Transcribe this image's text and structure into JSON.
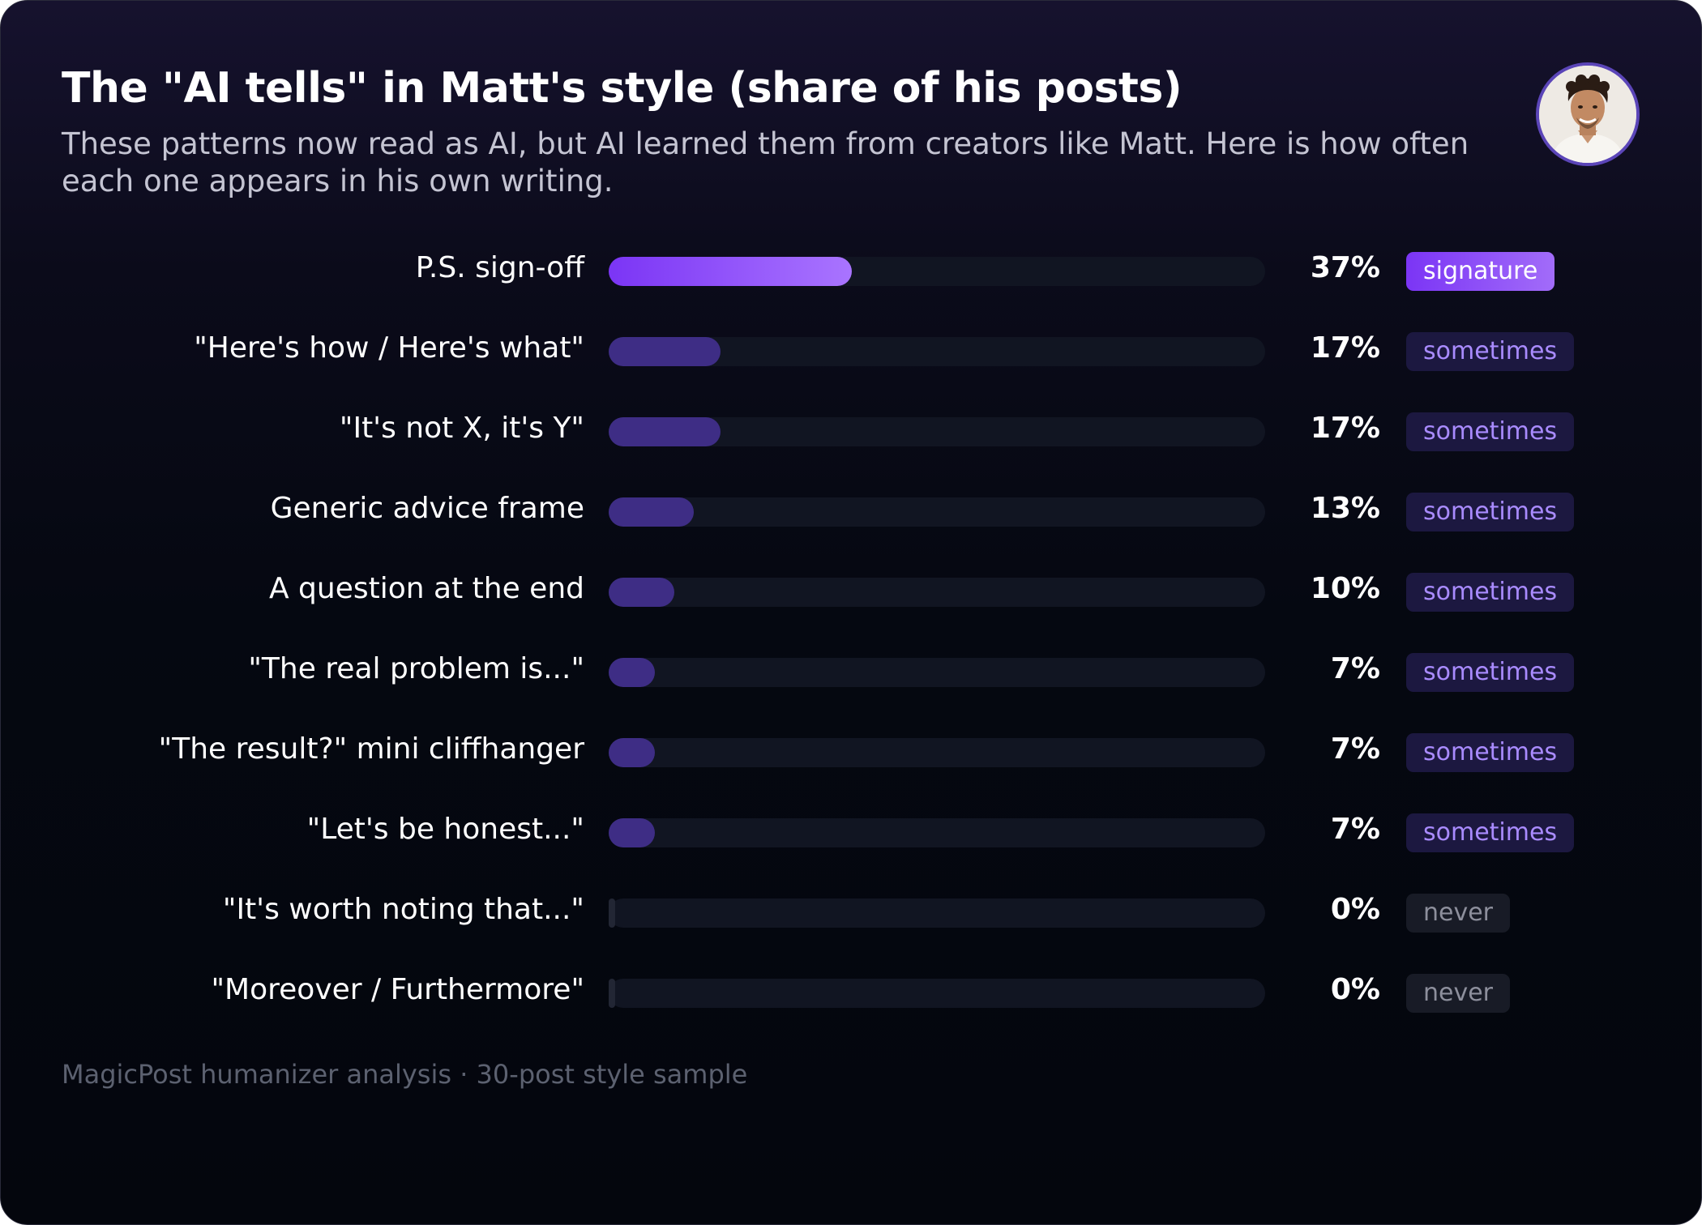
{
  "title": "The \"AI tells\" in Matt's style (share of his posts)",
  "subtitle": "These patterns now read as AI, but AI learned them from creators like Matt. Here is how often each one appears in his own writing.",
  "footer": "MagicPost humanizer analysis · 30-post style sample",
  "icons": {
    "avatar": "author-portrait"
  },
  "colors": {
    "background": "#05080f",
    "top_bar": "#8b46ff",
    "bar": "#3e2d85",
    "track": "#111522",
    "badge_signature": "#8b46ff",
    "badge_sometimes_text": "#a98bff",
    "badge_never_text": "#8d8f9c"
  },
  "chart_data": {
    "type": "bar",
    "orientation": "horizontal",
    "title": "The \"AI tells\" in Matt's style (share of his posts)",
    "xlim": [
      0,
      100
    ],
    "unit": "%",
    "grid": false,
    "legend": "none",
    "categories": [
      "P.S. sign-off",
      "\"Here's how / Here's what\"",
      "\"It's not X, it's Y\"",
      "Generic advice frame",
      "A question at the end",
      "\"The real problem is...\"",
      "\"The result?\" mini cliffhanger",
      "\"Let's be honest...\"",
      "\"It's worth noting that...\"",
      "\"Moreover / Furthermore\""
    ],
    "values": [
      37,
      17,
      17,
      13,
      10,
      7,
      7,
      7,
      0,
      0
    ],
    "value_labels": [
      "37%",
      "17%",
      "17%",
      "13%",
      "10%",
      "7%",
      "7%",
      "7%",
      "0%",
      "0%"
    ],
    "frequency_tags": [
      "signature",
      "sometimes",
      "sometimes",
      "sometimes",
      "sometimes",
      "sometimes",
      "sometimes",
      "sometimes",
      "never",
      "never"
    ]
  }
}
